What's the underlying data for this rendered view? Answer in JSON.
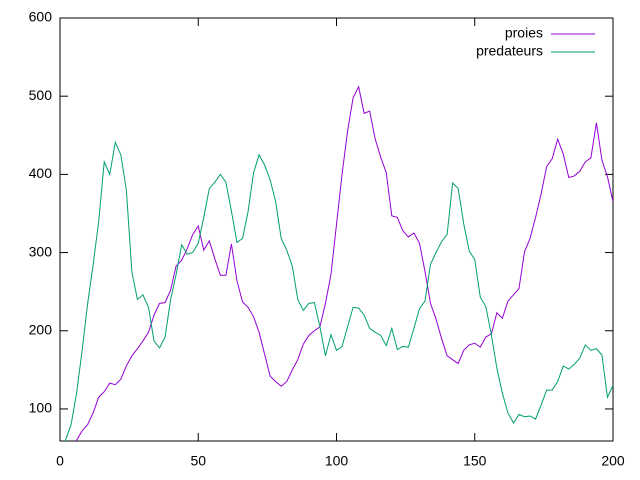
{
  "chart_data": {
    "type": "line",
    "x": [
      0,
      2,
      4,
      6,
      8,
      10,
      12,
      14,
      16,
      18,
      20,
      22,
      24,
      26,
      28,
      30,
      32,
      34,
      36,
      38,
      40,
      42,
      44,
      46,
      48,
      50,
      52,
      54,
      56,
      58,
      60,
      62,
      64,
      66,
      68,
      70,
      72,
      74,
      76,
      78,
      80,
      82,
      84,
      86,
      88,
      90,
      92,
      94,
      96,
      98,
      100,
      102,
      104,
      106,
      108,
      110,
      112,
      114,
      116,
      118,
      120,
      122,
      124,
      126,
      128,
      130,
      132,
      134,
      136,
      138,
      140,
      142,
      144,
      146,
      148,
      150,
      152,
      154,
      156,
      158,
      160,
      162,
      164,
      166,
      168,
      170,
      172,
      174,
      176,
      178,
      180,
      182,
      184,
      186,
      188,
      190,
      192,
      194,
      196,
      198,
      200
    ],
    "series": [
      {
        "name": "proies",
        "color": "#9400d3",
        "values": [
          20,
          30,
          45,
          60,
          72,
          80,
          95,
          115,
          122,
          133,
          131,
          138,
          155,
          168,
          177,
          187,
          198,
          220,
          235,
          236,
          252,
          283,
          290,
          305,
          323,
          334,
          303,
          315,
          292,
          271,
          271,
          311,
          264,
          237,
          230,
          218,
          198,
          170,
          142,
          135,
          129,
          135,
          150,
          163,
          183,
          194,
          200,
          205,
          235,
          272,
          336,
          400,
          455,
          498,
          512,
          478,
          481,
          445,
          422,
          402,
          347,
          345,
          328,
          320,
          325,
          312,
          276,
          235,
          215,
          190,
          168,
          163,
          158,
          175,
          182,
          184,
          179,
          192,
          196,
          223,
          216,
          238,
          246,
          254,
          301,
          318,
          345,
          375,
          410,
          420,
          445,
          426,
          396,
          398,
          404,
          416,
          421,
          466,
          418,
          397,
          365
        ]
      },
      {
        "name": "predateurs",
        "color": "#009e73",
        "values": [
          40,
          60,
          80,
          120,
          175,
          235,
          285,
          340,
          416,
          400,
          441,
          425,
          380,
          275,
          240,
          246,
          230,
          187,
          178,
          192,
          240,
          272,
          310,
          298,
          300,
          312,
          345,
          382,
          390,
          400,
          390,
          353,
          313,
          318,
          352,
          402,
          425,
          412,
          393,
          365,
          318,
          303,
          283,
          240,
          226,
          235,
          236,
          205,
          168,
          195,
          175,
          180,
          205,
          230,
          229,
          220,
          203,
          198,
          194,
          181,
          203,
          176,
          180,
          179,
          203,
          228,
          238,
          285,
          300,
          314,
          323,
          389,
          382,
          337,
          302,
          291,
          243,
          231,
          195,
          152,
          120,
          95,
          82,
          93,
          90,
          91,
          87,
          105,
          124,
          124,
          135,
          155,
          151,
          157,
          165,
          182,
          175,
          177,
          169,
          115,
          130
        ]
      }
    ],
    "xlim": [
      0,
      200
    ],
    "xticks": [
      0,
      50,
      100,
      150,
      200
    ],
    "ylim": [
      59,
      600
    ],
    "yticks": [
      100,
      200,
      300,
      400,
      500,
      600
    ],
    "legend": "top-right"
  }
}
